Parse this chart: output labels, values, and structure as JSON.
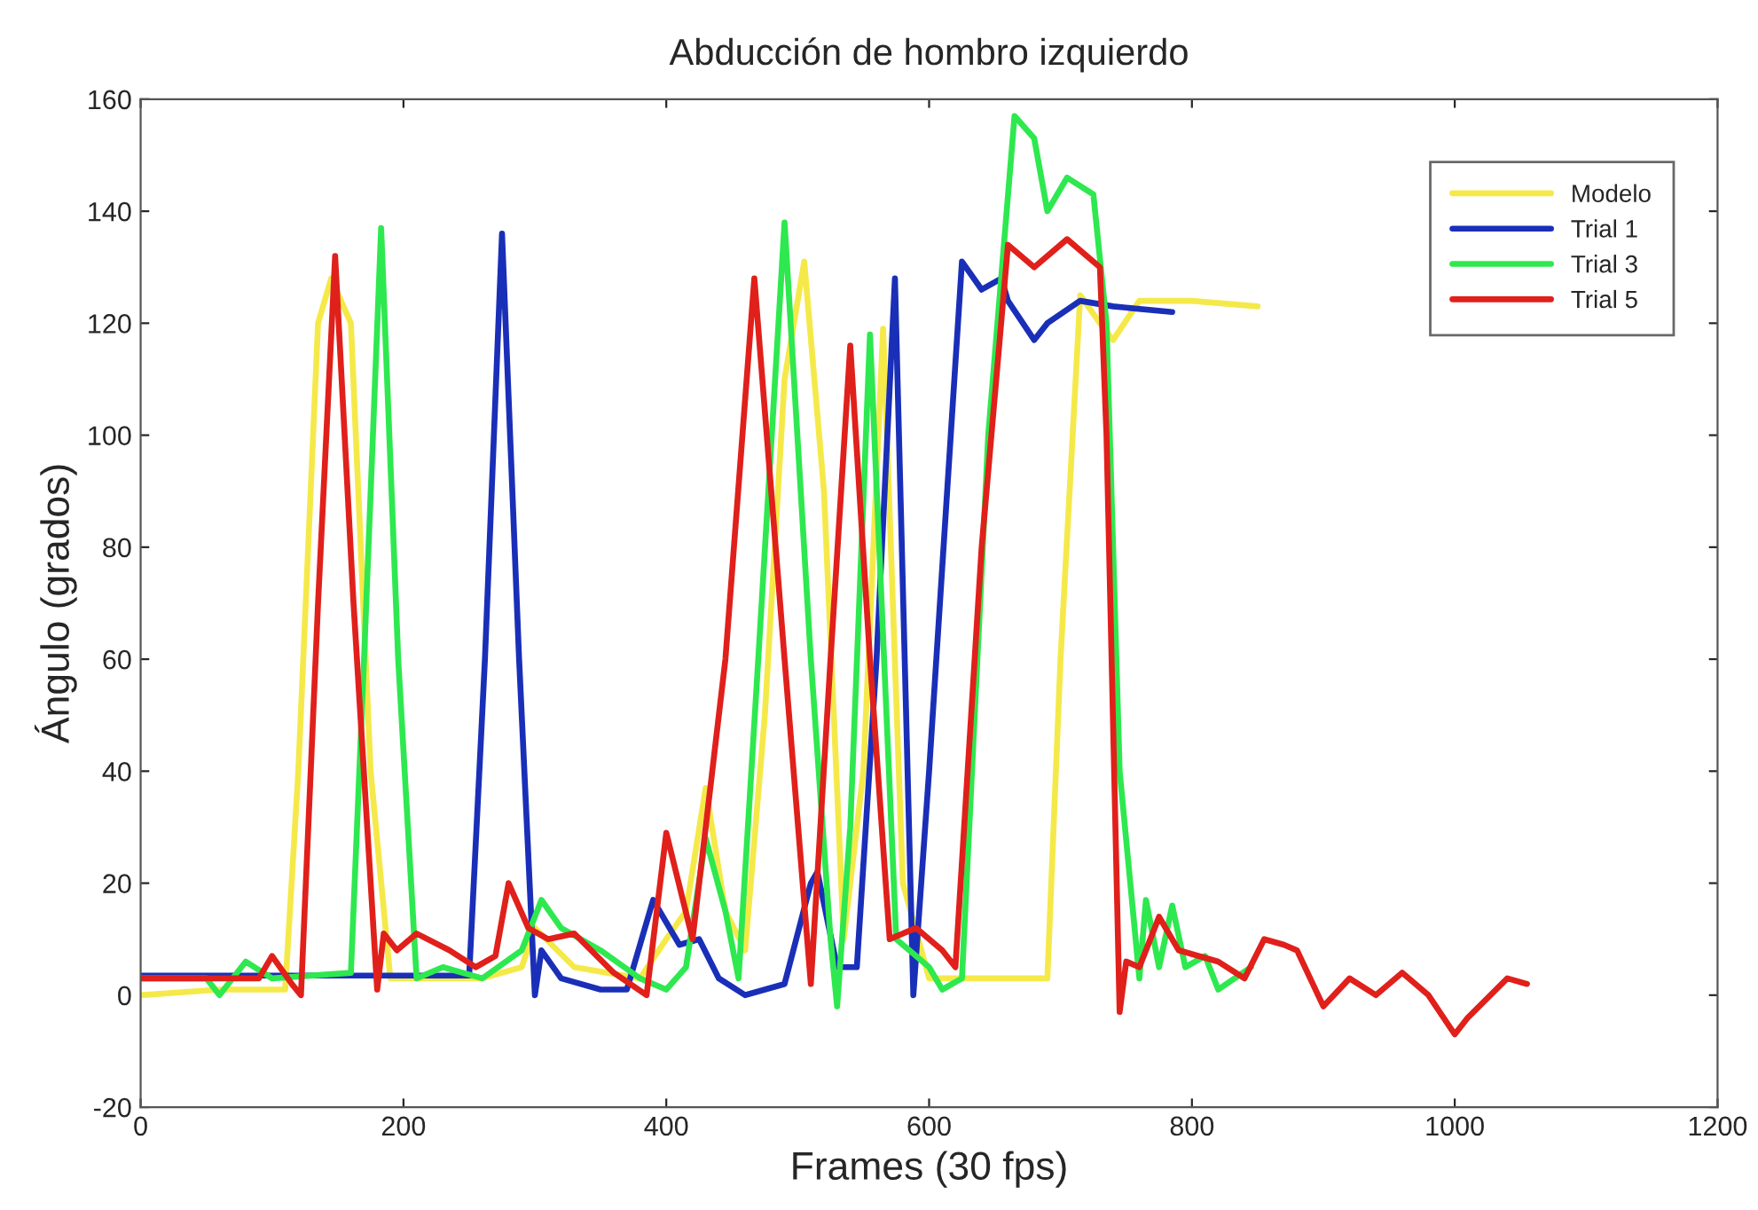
{
  "chart_data": {
    "type": "line",
    "title": "Abducción de hombro izquierdo",
    "xlabel": "Frames (30 fps)",
    "ylabel": "Ángulo (grados)",
    "xlim": [
      0,
      1200
    ],
    "xticks": [
      0,
      200,
      400,
      600,
      800,
      1000,
      1200
    ],
    "ylim": [
      -20,
      160
    ],
    "yticks": [
      -20,
      0,
      20,
      40,
      60,
      80,
      100,
      120,
      140,
      160
    ],
    "grid": false,
    "legend": "top right",
    "marker": "none",
    "line_style": "solid",
    "series": [
      {
        "name": "Modelo",
        "color": "#f5e94a",
        "x": [
          0,
          60,
          110,
          120,
          135,
          145,
          160,
          175,
          190,
          200,
          260,
          290,
          300,
          330,
          380,
          400,
          415,
          430,
          445,
          460,
          475,
          490,
          505,
          520,
          535,
          550,
          565,
          580,
          600,
          650,
          690,
          700,
          715,
          730,
          740,
          760,
          800,
          850
        ],
        "values": [
          0,
          1,
          1,
          40,
          120,
          128,
          120,
          40,
          3,
          3,
          3,
          5,
          12,
          5,
          3,
          10,
          15,
          37,
          15,
          8,
          50,
          110,
          131,
          90,
          10,
          40,
          119,
          20,
          3,
          3,
          3,
          60,
          125,
          120,
          117,
          124,
          124,
          123
        ]
      },
      {
        "name": "Trial 1",
        "color": "#1a2fb8",
        "x": [
          0,
          250,
          262,
          275,
          288,
          300,
          305,
          320,
          350,
          370,
          390,
          410,
          425,
          440,
          460,
          490,
          510,
          515,
          530,
          545,
          560,
          574,
          588,
          600,
          625,
          640,
          655,
          660,
          680,
          690,
          715,
          740,
          785
        ],
        "values": [
          3.5,
          3.5,
          60,
          136,
          60,
          0,
          8,
          3,
          1,
          1,
          17,
          9,
          10,
          3,
          0,
          2,
          20,
          22,
          5,
          5,
          60,
          128,
          0,
          40,
          131,
          126,
          128,
          124,
          117,
          120,
          124,
          123,
          122
        ]
      },
      {
        "name": "Trial 3",
        "color": "#2ee84f",
        "x": [
          0,
          50,
          60,
          80,
          100,
          160,
          170,
          183,
          196,
          210,
          230,
          260,
          290,
          305,
          320,
          350,
          380,
          400,
          415,
          430,
          445,
          455,
          470,
          490,
          510,
          525,
          530,
          540,
          555,
          575,
          600,
          610,
          625,
          645,
          665,
          680,
          690,
          705,
          725,
          735,
          745,
          760,
          765,
          775,
          785,
          795,
          810,
          820,
          845
        ],
        "values": [
          3,
          3,
          0,
          6,
          3,
          4,
          60,
          137,
          60,
          3,
          5,
          3,
          8,
          17,
          12,
          8,
          3,
          1,
          5,
          28,
          15,
          3,
          60,
          138,
          60,
          10,
          -2,
          30,
          118,
          10,
          5,
          1,
          3,
          100,
          157,
          153,
          140,
          146,
          143,
          120,
          40,
          3,
          17,
          5,
          16,
          5,
          7,
          1,
          5
        ]
      },
      {
        "name": "Trial 5",
        "color": "#e0201b",
        "x": [
          0,
          90,
          100,
          115,
          122,
          135,
          148,
          162,
          180,
          185,
          195,
          210,
          235,
          255,
          270,
          280,
          295,
          310,
          330,
          360,
          385,
          400,
          420,
          445,
          467,
          490,
          510,
          525,
          540,
          555,
          570,
          590,
          610,
          620,
          640,
          660,
          680,
          705,
          730,
          735,
          745,
          750,
          760,
          775,
          790,
          820,
          840,
          855,
          870,
          880,
          900,
          920,
          940,
          960,
          980,
          1000,
          1010,
          1040,
          1055
        ],
        "values": [
          3,
          3,
          7,
          2,
          0,
          70,
          132,
          70,
          1,
          11,
          8,
          11,
          8,
          5,
          7,
          20,
          12,
          10,
          11,
          4,
          0,
          29,
          10,
          60,
          128,
          60,
          2,
          60,
          116,
          60,
          10,
          12,
          8,
          5,
          80,
          134,
          130,
          135,
          130,
          100,
          -3,
          6,
          5,
          14,
          8,
          6,
          3,
          10,
          9,
          8,
          -2,
          3,
          0,
          4,
          0,
          -7,
          -4,
          3,
          2
        ]
      }
    ]
  }
}
